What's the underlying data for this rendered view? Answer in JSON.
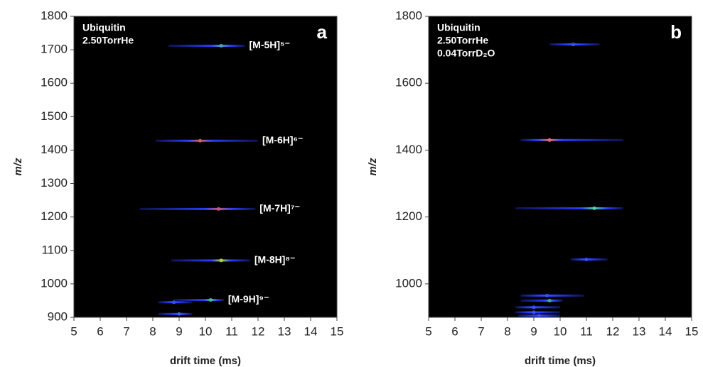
{
  "chart_data": [
    {
      "type": "heatmap",
      "panel_label": "a",
      "annotations": [
        "Ubiquitin",
        "2.50TorrHe"
      ],
      "x_label": "drift time (ms)",
      "y_label": "m/z",
      "background": "#000000",
      "xlim": [
        5,
        15
      ],
      "xticks": [
        5,
        6,
        7,
        8,
        9,
        10,
        11,
        12,
        13,
        14,
        15
      ],
      "ylim": [
        900,
        1800
      ],
      "yticks": [
        900,
        1000,
        1100,
        1200,
        1300,
        1400,
        1500,
        1600,
        1700,
        1800
      ],
      "streaks": [
        {
          "mz": 1712,
          "x_start": 8.6,
          "x_end": 11.5,
          "peak": 10.6,
          "color": "#2a3cff",
          "peak_color": "#4fa0c0",
          "label": "[M-5H]⁵⁻"
        },
        {
          "mz": 1428,
          "x_start": 8.1,
          "x_end": 12.0,
          "peak": 9.8,
          "color": "#2a3cff",
          "peak_color": "#d06060",
          "label": "[M-6H]⁶⁻"
        },
        {
          "mz": 1224,
          "x_start": 7.5,
          "x_end": 11.9,
          "peak": 10.5,
          "color": "#2a3cff",
          "peak_color": "#c05a80",
          "label": "[M-7H]⁷⁻"
        },
        {
          "mz": 1070,
          "x_start": 8.7,
          "x_end": 11.7,
          "peak": 10.6,
          "color": "#2a3cff",
          "peak_color": "#b0d040",
          "label": "[M-8H]⁸⁻"
        },
        {
          "mz": 952,
          "x_start": 8.8,
          "x_end": 10.7,
          "peak": 10.2,
          "color": "#2a3cff",
          "peak_color": "#40c0a0",
          "label": "[M-9H]⁹⁻"
        },
        {
          "mz": 945,
          "x_start": 8.2,
          "x_end": 9.5,
          "peak": 8.8,
          "color": "#2a3cff",
          "peak_color": "#3050ff"
        },
        {
          "mz": 910,
          "x_start": 8.2,
          "x_end": 9.5,
          "peak": 9.0,
          "color": "#2a3cff",
          "peak_color": "#3a60ff"
        }
      ]
    },
    {
      "type": "heatmap",
      "panel_label": "b",
      "annotations": [
        "Ubiquitin",
        "2.50TorrHe",
        "0.04TorrD₂O"
      ],
      "x_label": "drift time (ms)",
      "y_label": "m/z",
      "background": "#000000",
      "xlim": [
        5,
        15
      ],
      "xticks": [
        5,
        6,
        7,
        8,
        9,
        10,
        11,
        12,
        13,
        14,
        15
      ],
      "ylim": [
        900,
        1800
      ],
      "yticks": [
        1000,
        1200,
        1400,
        1600,
        1800
      ],
      "streaks": [
        {
          "mz": 1716,
          "x_start": 9.6,
          "x_end": 11.5,
          "peak": 10.5,
          "color": "#2a3cff",
          "peak_color": "#3a50ff"
        },
        {
          "mz": 1430,
          "x_start": 8.5,
          "x_end": 12.4,
          "peak": 9.6,
          "color": "#2a3cff",
          "peak_color": "#e07070"
        },
        {
          "mz": 1226,
          "x_start": 8.3,
          "x_end": 12.4,
          "peak": 11.3,
          "color": "#2a3cff",
          "peak_color": "#50d0b0"
        },
        {
          "mz": 1073,
          "x_start": 10.4,
          "x_end": 11.8,
          "peak": 11.0,
          "color": "#2a3cff",
          "peak_color": "#3a50ff"
        },
        {
          "mz": 965,
          "x_start": 8.5,
          "x_end": 10.9,
          "peak": 9.5,
          "color": "#2a3cff",
          "peak_color": "#3a50ff"
        },
        {
          "mz": 950,
          "x_start": 8.5,
          "x_end": 10.1,
          "peak": 9.6,
          "color": "#2a3cff",
          "peak_color": "#40a0c0"
        },
        {
          "mz": 930,
          "x_start": 8.3,
          "x_end": 10.0,
          "peak": 9.0,
          "color": "#2a3cff",
          "peak_color": "#3a50ff"
        },
        {
          "mz": 915,
          "x_start": 8.3,
          "x_end": 10.0,
          "peak": 9.0,
          "color": "#2a3cff",
          "peak_color": "#3a50ff"
        },
        {
          "mz": 905,
          "x_start": 8.4,
          "x_end": 10.0,
          "peak": 9.2,
          "color": "#2a3cff",
          "peak_color": "#3a50ff"
        }
      ]
    }
  ]
}
